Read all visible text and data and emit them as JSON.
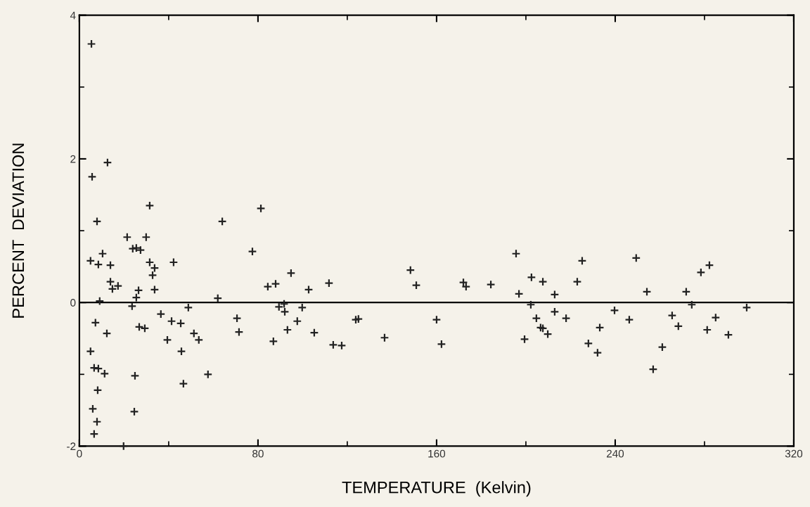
{
  "chart_data": {
    "type": "scatter",
    "xlabel": "TEMPERATURE  (Kelvin)",
    "ylabel": "PERCENT  DEVIATION",
    "xlim": [
      0,
      320
    ],
    "ylim": [
      -2,
      4
    ],
    "xticks": [
      0,
      {
        "value": 40,
        "label": null
      },
      80,
      {
        "value": 120,
        "label": null
      },
      160,
      {
        "value": 200,
        "label": null
      },
      240,
      {
        "value": 280,
        "label": null
      },
      320
    ],
    "yticks": [
      -2,
      {
        "value": -1,
        "label": null
      },
      0,
      {
        "value": 1,
        "label": null
      },
      2,
      {
        "value": 3,
        "label": null
      },
      4
    ],
    "grid": false,
    "marker": "cross",
    "ref_lines": [
      {
        "axis": "y",
        "value": 0,
        "color": "#000000"
      }
    ],
    "series": [
      {
        "color": "#222222",
        "x": [
          5.4,
          12.6,
          5.7,
          7.9,
          31.5,
          64,
          81.3,
          21.4,
          29.9,
          23.9,
          25.5,
          27.4,
          10.4,
          5,
          8.5,
          13.9,
          31.5,
          33.7,
          42.2,
          32.8,
          13.9,
          14.8,
          17.3,
          26.5,
          33.7,
          25.5,
          9.1,
          62,
          77.5,
          84.4,
          87.9,
          23.6,
          48.8,
          7.2,
          12.3,
          26.8,
          29.3,
          36.5,
          41.3,
          45.4,
          39.4,
          45.7,
          51.3,
          53.5,
          70.6,
          71.5,
          86.9,
          89.4,
          92,
          91.7,
          93.2,
          5,
          6.6,
          8.5,
          11.3,
          24.9,
          57.6,
          46.6,
          8.2,
          6,
          24.6,
          7.9,
          6.6,
          19.8,
          94.8,
          102.7,
          111.8,
          148.3,
          150.9,
          172,
          173.2,
          184.3,
          195.6,
          202.5,
          207.6,
          196.9,
          99.8,
          97.6,
          105.2,
          113.7,
          117.5,
          123.8,
          125,
          136.7,
          160,
          162.2,
          202.2,
          204.7,
          206.6,
          207.6,
          209.8,
          199.4,
          225.2,
          249.4,
          282.2,
          278.4,
          223,
          212.9,
          254.2,
          271.8,
          212.9,
          218,
          239.7,
          233.1,
          246.3,
          228,
          232.1,
          257,
          261.1,
          265.5,
          268.3,
          274.3,
          285,
          281.2,
          290.7,
          298.9
        ],
        "values": [
          3.6,
          1.95,
          1.75,
          1.13,
          1.35,
          1.13,
          1.31,
          0.91,
          0.91,
          0.75,
          0.76,
          0.73,
          0.68,
          0.58,
          0.53,
          0.52,
          0.56,
          0.48,
          0.56,
          0.38,
          0.29,
          0.19,
          0.23,
          0.17,
          0.18,
          0.07,
          0.02,
          0.06,
          0.71,
          0.22,
          0.26,
          -0.05,
          -0.07,
          -0.28,
          -0.43,
          -0.34,
          -0.36,
          -0.16,
          -0.26,
          -0.29,
          -0.52,
          -0.68,
          -0.43,
          -0.52,
          -0.22,
          -0.41,
          -0.54,
          -0.06,
          -0.13,
          -0.02,
          -0.38,
          -0.68,
          -0.91,
          -0.92,
          -0.99,
          -1.02,
          -1.0,
          -1.13,
          -1.22,
          -1.48,
          -1.52,
          -1.66,
          -1.83,
          -2.0,
          0.41,
          0.18,
          0.27,
          0.45,
          0.24,
          0.28,
          0.22,
          0.25,
          0.68,
          0.35,
          0.29,
          0.12,
          -0.07,
          -0.26,
          -0.42,
          -0.59,
          -0.6,
          -0.24,
          -0.23,
          -0.49,
          -0.24,
          -0.58,
          -0.03,
          -0.22,
          -0.35,
          -0.36,
          -0.44,
          -0.51,
          0.58,
          0.62,
          0.52,
          0.42,
          0.29,
          0.11,
          0.15,
          0.15,
          -0.13,
          -0.22,
          -0.11,
          -0.35,
          -0.24,
          -0.57,
          -0.7,
          -0.93,
          -0.62,
          -0.18,
          -0.33,
          -0.03,
          -0.21,
          -0.38,
          -0.45,
          -0.07
        ]
      }
    ]
  }
}
